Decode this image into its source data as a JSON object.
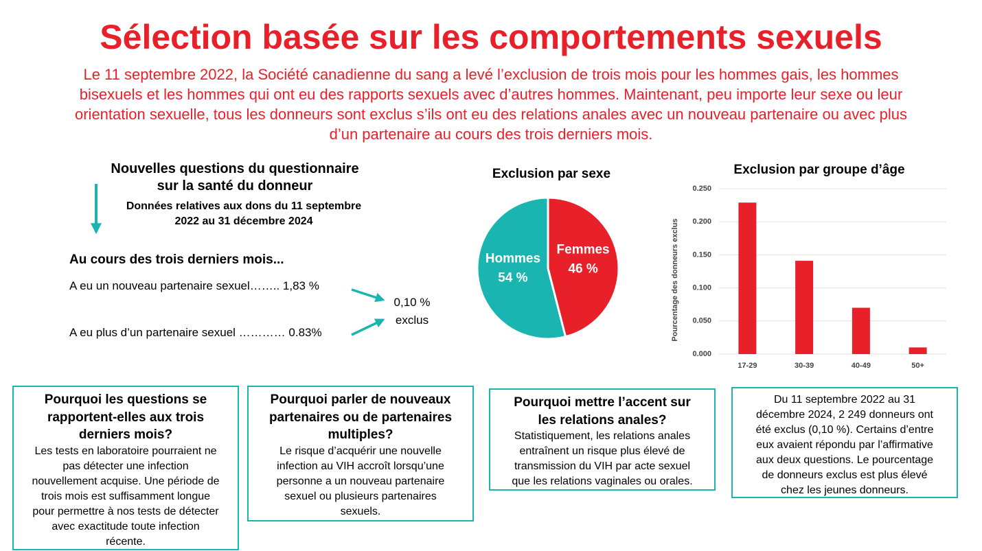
{
  "title": "Sélection basée sur les comportements sexuels",
  "intro": [
    "Le 11 septembre 2022, la Société canadienne du sang a levé l’exclusion de trois mois pour les hommes gais, les hommes",
    "bisexuels et les hommes qui ont eu des rapports sexuels avec d’autres hommes. Maintenant, peu importe leur sexe ou leur",
    "orientation sexuelle, tous les donneurs sont exclus s’ils ont eu des relations anales avec un nouveau partenaire ou avec plus",
    "d’un partenaire au cours des trois derniers mois."
  ],
  "questions": {
    "heading": [
      "Nouvelles questions du questionnaire",
      "sur la santé du donneur"
    ],
    "subheading": [
      "Données relatives aux dons du 11 septembre",
      "2022 au 31 décembre 2024"
    ],
    "period": "Au cours des trois derniers mois...",
    "items": [
      "A eu un nouveau partenaire sexuel…….. 1,83 %",
      "A eu plus d’un partenaire sexuel ………… 0.83%"
    ],
    "result": [
      "0,10 %",
      "exclus"
    ]
  },
  "chart_data": [
    {
      "type": "pie",
      "title": "Exclusion par sexe",
      "categories": [
        "Hommes",
        "Femmes"
      ],
      "values": [
        54,
        46
      ],
      "value_labels": [
        "54 %",
        "46 %"
      ],
      "colors": [
        "#1ab5b0",
        "#e8202a"
      ]
    },
    {
      "type": "bar",
      "title": "Exclusion par groupe d’âge",
      "y_label": "Pourcentage des donneurs exclus",
      "categories": [
        "17-29",
        "30-39",
        "40-49",
        "50+"
      ],
      "values": [
        0.229,
        0.141,
        0.07,
        0.01
      ],
      "color": "#e8202a",
      "ylim": [
        0,
        0.25
      ],
      "yticks": [
        {
          "value": 0,
          "label": "0.000"
        },
        {
          "value": 0.05,
          "label": "0.050"
        },
        {
          "value": 0.1,
          "label": "0.100"
        },
        {
          "value": 0.15,
          "label": "0.150"
        },
        {
          "value": 0.2,
          "label": "0.200"
        },
        {
          "value": 0.25,
          "label": "0.250"
        }
      ],
      "grid": true
    }
  ],
  "boxes": [
    {
      "title": [
        "Pourquoi les questions se",
        "rapportent-elles aux trois",
        "derniers mois?"
      ],
      "body": [
        "Les tests en laboratoire pourraient ne",
        "pas détecter une infection",
        "nouvellement acquise. Une période de",
        "trois mois est suffisamment longue",
        "pour permettre à nos tests de détecter",
        "avec exactitude toute infection",
        "récente."
      ]
    },
    {
      "title": [
        "Pourquoi parler de nouveaux",
        "partenaires ou de partenaires",
        "multiples?"
      ],
      "body": [
        "Le risque d’acquérir une nouvelle",
        "infection au VIH accroît lorsqu’une",
        "personne a un nouveau partenaire",
        "sexuel ou plusieurs partenaires",
        "sexuels."
      ]
    },
    {
      "title": [
        "Pourquoi mettre l’accent sur",
        "les relations anales?"
      ],
      "body": [
        "Statistiquement, les relations anales",
        "entraînent un risque plus élevé de",
        "transmission du VIH par acte sexuel",
        "que les relations vaginales ou orales."
      ]
    },
    {
      "body": [
        "Du 11 septembre 2022 au 31",
        "décembre 2024, 2 249 donneurs ont",
        "été exclus (0,10 %). Certains d’entre",
        "eux avaient répondu par l’affirmative",
        "aux deux questions. Le pourcentage",
        "de donneurs exclus est plus élevé",
        "chez les jeunes donneurs."
      ]
    }
  ]
}
